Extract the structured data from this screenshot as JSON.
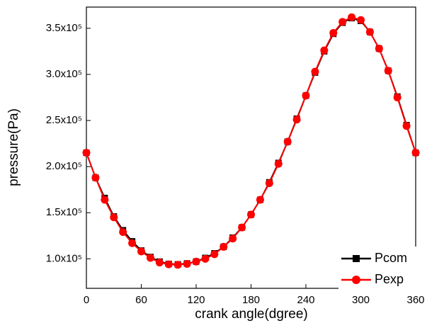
{
  "chart_data": {
    "type": "line",
    "x_label": "crank angle(dgree)",
    "y_label": "pressure(Pa)",
    "x": [
      0,
      10,
      20,
      30,
      40,
      50,
      60,
      70,
      80,
      90,
      100,
      110,
      120,
      130,
      140,
      150,
      160,
      170,
      180,
      190,
      200,
      210,
      220,
      230,
      240,
      250,
      260,
      270,
      280,
      290,
      300,
      310,
      320,
      330,
      340,
      350,
      360
    ],
    "series": [
      {
        "name": "Pcom",
        "color": "#000000",
        "marker": "square",
        "values": [
          215000,
          188000,
          166000,
          146000,
          131000,
          119000,
          109000,
          102000,
          97000,
          94500,
          94000,
          95000,
          97000,
          101000,
          106000,
          113000,
          123000,
          134000,
          148000,
          164000,
          183000,
          204000,
          227000,
          252000,
          277000,
          302000,
          325000,
          344000,
          356000,
          361000,
          358000,
          346000,
          328000,
          304000,
          276000,
          245000,
          215000
        ]
      },
      {
        "name": "Pexp",
        "color": "#ff0000",
        "marker": "circle",
        "values": [
          215000,
          188000,
          164000,
          145000,
          129000,
          117000,
          108000,
          101000,
          96000,
          94000,
          93500,
          94500,
          97000,
          100000,
          105000,
          113000,
          122000,
          134000,
          148000,
          164000,
          182000,
          203000,
          227000,
          251000,
          277000,
          303000,
          326000,
          345000,
          357000,
          362000,
          359000,
          346000,
          328000,
          304000,
          275000,
          244000,
          215000
        ]
      }
    ],
    "xlim": [
      0,
      360
    ],
    "xticks": [
      0,
      60,
      120,
      180,
      240,
      300,
      360
    ],
    "ylim": [
      68000,
      373000
    ],
    "yticks": [
      {
        "value": 100000,
        "label": "1.0x10⁵"
      },
      {
        "value": 150000,
        "label": "1.5x10⁵"
      },
      {
        "value": 200000,
        "label": "2.0x10⁵"
      },
      {
        "value": 250000,
        "label": "2.5x10⁵"
      },
      {
        "value": 300000,
        "label": "3.0x10⁵"
      },
      {
        "value": 350000,
        "label": "3.5x10⁵"
      }
    ],
    "legend": "lower right"
  }
}
